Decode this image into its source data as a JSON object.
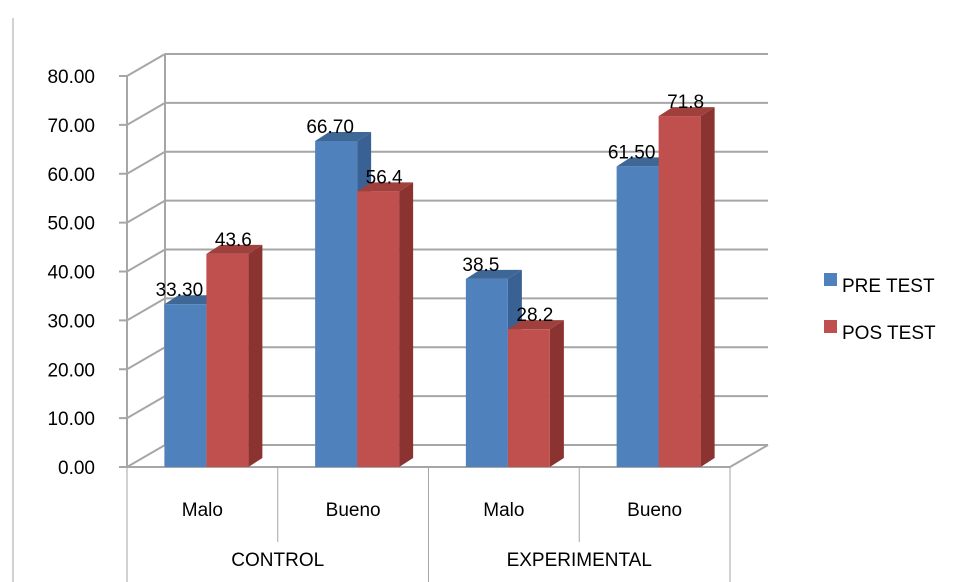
{
  "chart_data": {
    "type": "bar",
    "style": "3d-clustered-column",
    "groups": [
      {
        "label": "CONTROL",
        "categories": [
          "Malo",
          "Bueno"
        ]
      },
      {
        "label": "EXPERIMENTAL",
        "categories": [
          "Malo",
          "Bueno"
        ]
      }
    ],
    "categories": [
      "Malo",
      "Bueno",
      "Malo",
      "Bueno"
    ],
    "series": [
      {
        "name": "PRE TEST",
        "color": "#4F81BD",
        "side": "#3A6193",
        "top": "#3F6796",
        "values": [
          33.3,
          66.7,
          38.5,
          61.5
        ],
        "labels": [
          "33.30",
          "66.70",
          "38.5",
          "61.50"
        ]
      },
      {
        "name": "POS TEST",
        "color": "#C0504D",
        "side": "#8A3331",
        "top": "#A0403D",
        "values": [
          43.6,
          56.4,
          28.2,
          71.8
        ],
        "labels": [
          "43.6",
          "56.4",
          "28.2",
          "71.8"
        ]
      }
    ],
    "yticks": [
      "0.00",
      "10.00",
      "20.00",
      "30.00",
      "40.00",
      "50.00",
      "60.00",
      "70.00",
      "80.00"
    ],
    "ylim": [
      0,
      80
    ],
    "grid": true,
    "legend": "right"
  }
}
